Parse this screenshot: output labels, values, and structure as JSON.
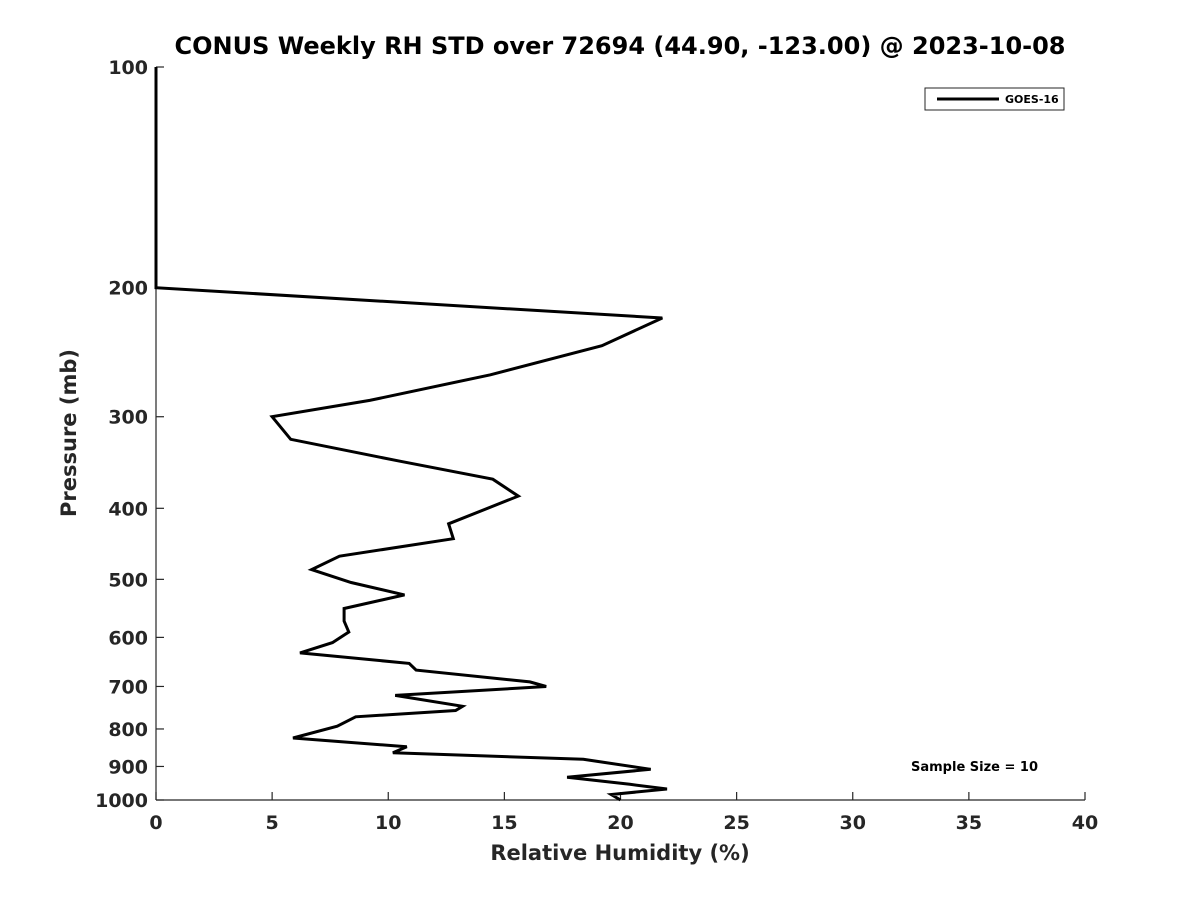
{
  "chart_data": {
    "type": "line",
    "title": "CONUS Weekly RH STD over 72694 (44.90, -123.00) @ 2023-10-08",
    "xlabel": "Relative Humidity (%)",
    "ylabel": "Pressure (mb)",
    "xlim": [
      0,
      40
    ],
    "ylim": [
      100,
      1000
    ],
    "y_scale": "log",
    "y_reversed": true,
    "x_ticks": [
      "0",
      "5",
      "10",
      "15",
      "20",
      "25",
      "30",
      "35",
      "40"
    ],
    "y_ticks": [
      "100",
      "200",
      "300",
      "400",
      "500",
      "600",
      "700",
      "800",
      "900",
      "1000"
    ],
    "grid": false,
    "legend": {
      "placement": "top-right",
      "entries": [
        "GOES-16"
      ]
    },
    "annotations": [
      "Sample Size = 10"
    ],
    "series": [
      {
        "name": "GOES-16",
        "color": "#000000",
        "points": [
          [
            0,
            100
          ],
          [
            0,
            150
          ],
          [
            0,
            200
          ],
          [
            21.8,
            220
          ],
          [
            19.2,
            240
          ],
          [
            14.4,
            263
          ],
          [
            9.2,
            285
          ],
          [
            5.0,
            300
          ],
          [
            5.8,
            322
          ],
          [
            10.5,
            345
          ],
          [
            14.5,
            365
          ],
          [
            15.6,
            385
          ],
          [
            12.6,
            420
          ],
          [
            12.8,
            440
          ],
          [
            7.9,
            465
          ],
          [
            6.7,
            485
          ],
          [
            8.4,
            505
          ],
          [
            10.7,
            525
          ],
          [
            8.1,
            548
          ],
          [
            8.1,
            570
          ],
          [
            8.3,
            590
          ],
          [
            7.6,
            610
          ],
          [
            6.2,
            630
          ],
          [
            10.9,
            651
          ],
          [
            11.2,
            665
          ],
          [
            16.1,
            690
          ],
          [
            16.8,
            700
          ],
          [
            10.3,
            720
          ],
          [
            13.2,
            745
          ],
          [
            12.9,
            755
          ],
          [
            8.6,
            770
          ],
          [
            7.8,
            793
          ],
          [
            5.9,
            823
          ],
          [
            10.8,
            846
          ],
          [
            10.2,
            862
          ],
          [
            18.4,
            880
          ],
          [
            21.3,
            908
          ],
          [
            17.7,
            931
          ],
          [
            20.4,
            952
          ],
          [
            22.0,
            966
          ],
          [
            19.6,
            983
          ],
          [
            20.0,
            1000
          ]
        ]
      }
    ]
  }
}
